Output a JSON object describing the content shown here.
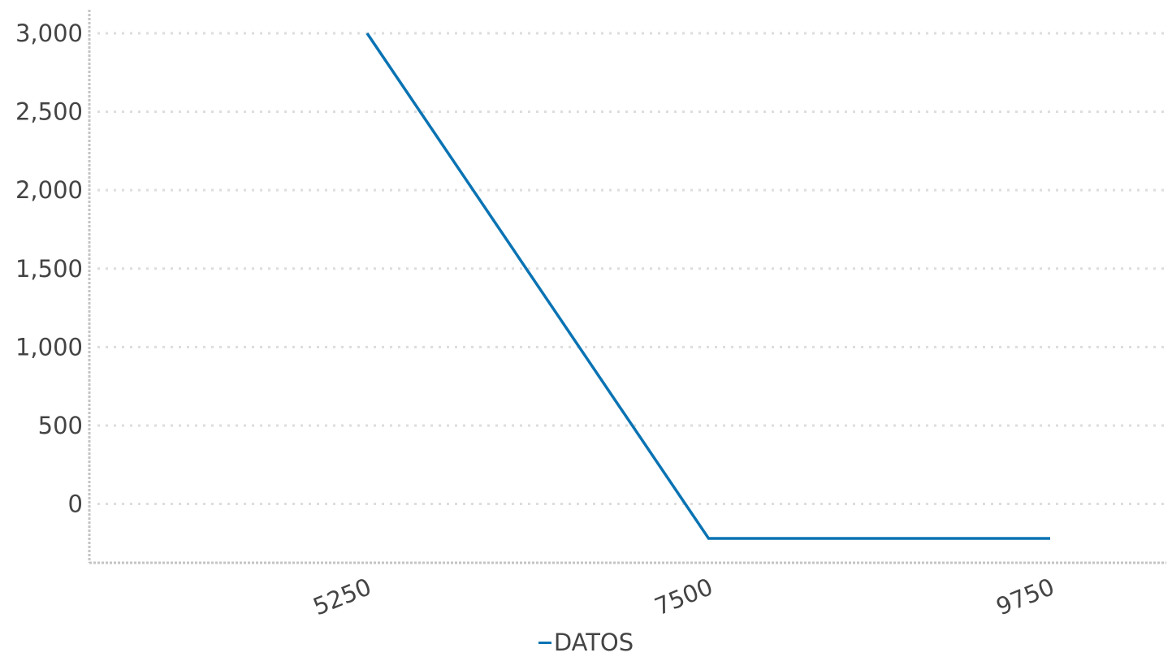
{
  "chart_data": {
    "type": "line",
    "x": [
      5250,
      7500,
      9750
    ],
    "x_tick_labels": [
      "5250",
      "7500",
      "9750"
    ],
    "series": [
      {
        "name": "DATOS",
        "color": "#0a73b3",
        "values": [
          3000,
          -220,
          -220
        ]
      }
    ],
    "ylim": [
      -375,
      3150
    ],
    "y_ticks": [
      0,
      500,
      1000,
      1500,
      2000,
      2500,
      3000
    ],
    "y_tick_labels": [
      "0",
      "500",
      "1,000",
      "1,500",
      "2,000",
      "2,500",
      "3,000"
    ],
    "grid": true,
    "legend_position": "bottom-center"
  }
}
